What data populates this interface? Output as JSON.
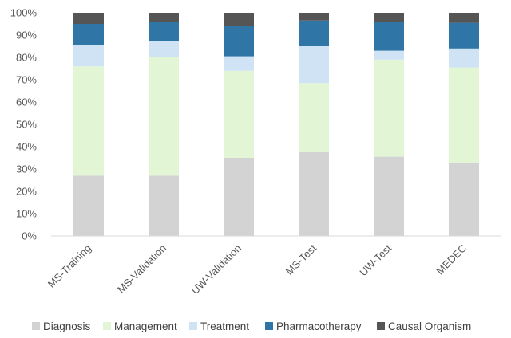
{
  "chart_data": {
    "type": "bar",
    "stacked": true,
    "percent": true,
    "categories": [
      "MS-Training",
      "MS-Validation",
      "UW-Validation",
      "MS-Test",
      "UW-Test",
      "MEDEC"
    ],
    "series": [
      {
        "name": "Diagnosis",
        "color": "#d3d3d3",
        "values": [
          27,
          27,
          35,
          37.5,
          35.5,
          32.5
        ]
      },
      {
        "name": "Management",
        "color": "#e2f5d5",
        "values": [
          49,
          53,
          39,
          31,
          43.5,
          43
        ]
      },
      {
        "name": "Treatment",
        "color": "#cfe3f5",
        "values": [
          9.5,
          7.5,
          6.5,
          16.5,
          4,
          8.5
        ]
      },
      {
        "name": "Pharmacotherapy",
        "color": "#2f75a6",
        "values": [
          9.5,
          8.5,
          13.5,
          11.5,
          13,
          11.5
        ]
      },
      {
        "name": "Causal Organism",
        "color": "#555555",
        "values": [
          5,
          4,
          6,
          3.5,
          4,
          4.5
        ]
      }
    ],
    "yticks": [
      "0%",
      "10%",
      "20%",
      "30%",
      "40%",
      "50%",
      "60%",
      "70%",
      "80%",
      "90%",
      "100%"
    ],
    "ylim": [
      0,
      100
    ],
    "grid": false,
    "legend": "bottom"
  }
}
